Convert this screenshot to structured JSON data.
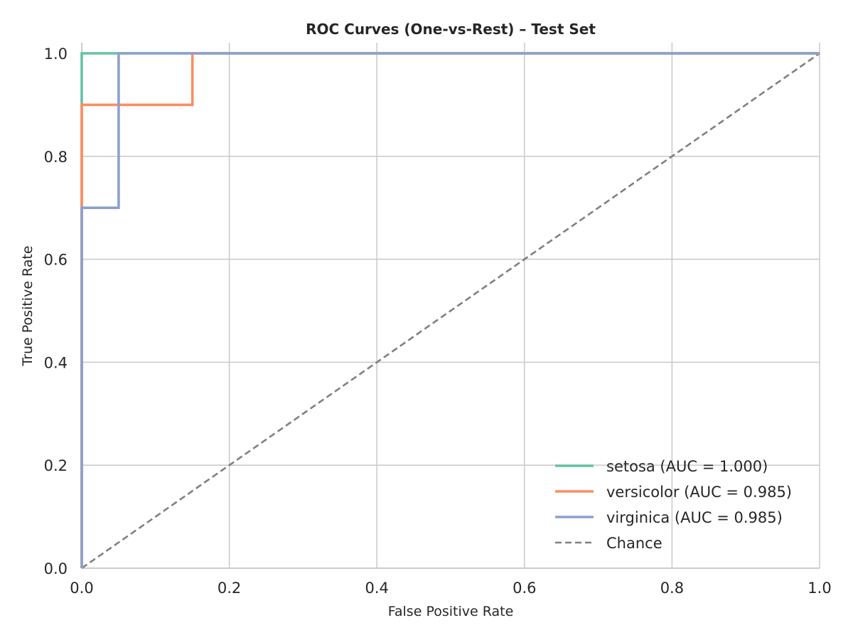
{
  "chart_data": {
    "type": "line",
    "title": "ROC Curves (One-vs-Rest) – Test Set",
    "xlabel": "False Positive Rate",
    "ylabel": "True Positive Rate",
    "xlim": [
      0,
      1
    ],
    "ylim": [
      0,
      1
    ],
    "grid": true,
    "legend_position": "bottom-right",
    "x_ticks": [
      {
        "value": 0,
        "label": "0.0"
      },
      {
        "value": 0.2,
        "label": "0.2"
      },
      {
        "value": 0.4,
        "label": "0.4"
      },
      {
        "value": 0.6,
        "label": "0.6"
      },
      {
        "value": 0.8,
        "label": "0.8"
      },
      {
        "value": 1,
        "label": "1.0"
      }
    ],
    "y_ticks": [
      {
        "value": 0,
        "label": "0.0"
      },
      {
        "value": 0.2,
        "label": "0.2"
      },
      {
        "value": 0.4,
        "label": "0.4"
      },
      {
        "value": 0.6,
        "label": "0.6"
      },
      {
        "value": 0.8,
        "label": "0.8"
      },
      {
        "value": 1,
        "label": "1.0"
      }
    ],
    "series": [
      {
        "name": "setosa (AUC = 1.000)",
        "color": "#66c2a5",
        "dashed": false,
        "x": [
          0,
          0,
          0.05,
          1
        ],
        "y": [
          0,
          1,
          1,
          1
        ]
      },
      {
        "name": "versicolor (AUC = 0.985)",
        "color": "#fc8d62",
        "dashed": false,
        "x": [
          0,
          0,
          0,
          0.15,
          0.15,
          1
        ],
        "y": [
          0,
          0.7,
          0.9,
          0.9,
          1,
          1
        ]
      },
      {
        "name": "virginica (AUC = 0.985)",
        "color": "#8da0cb",
        "dashed": false,
        "x": [
          0,
          0,
          0.05,
          0.05,
          1
        ],
        "y": [
          0,
          0.7,
          0.7,
          1,
          1
        ]
      },
      {
        "name": "Chance",
        "color": "#808080",
        "dashed": true,
        "x": [
          0,
          1
        ],
        "y": [
          0,
          1
        ]
      }
    ]
  }
}
